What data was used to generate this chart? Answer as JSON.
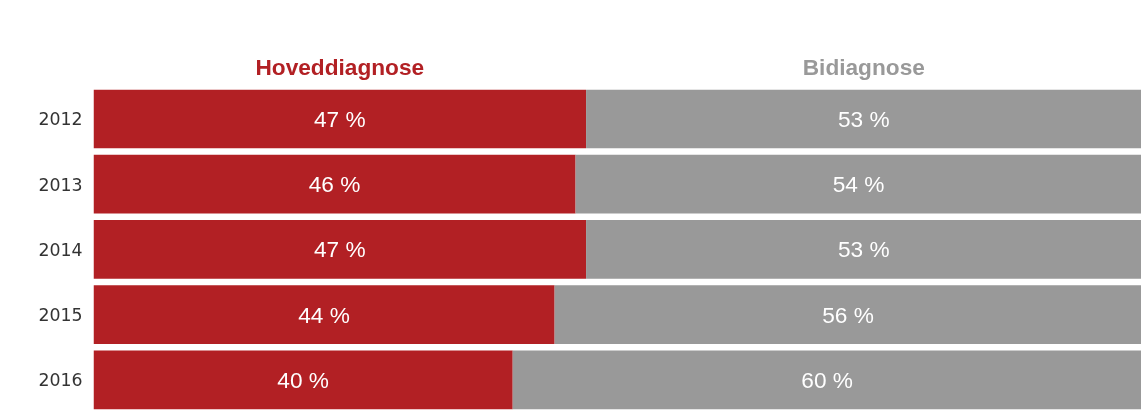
{
  "chart_data": {
    "type": "bar",
    "orientation": "horizontal",
    "stacked": true,
    "categories": [
      "2012",
      "2013",
      "2014",
      "2015",
      "2016"
    ],
    "xlim": [
      0,
      100
    ],
    "tick_labels": "y",
    "grid": false,
    "series": [
      {
        "name": "Hoveddiagnose",
        "color": "#b22024",
        "values": [
          47,
          46,
          47,
          44,
          40
        ],
        "value_labels": [
          "47 %",
          "46 %",
          "47 %",
          "44 %",
          "40 %"
        ]
      },
      {
        "name": "Bidiagnose",
        "color": "#999999",
        "values": [
          53,
          54,
          53,
          56,
          60
        ],
        "value_labels": [
          "53 %",
          "54 %",
          "53 %",
          "56 %",
          "60 %"
        ]
      }
    ]
  }
}
